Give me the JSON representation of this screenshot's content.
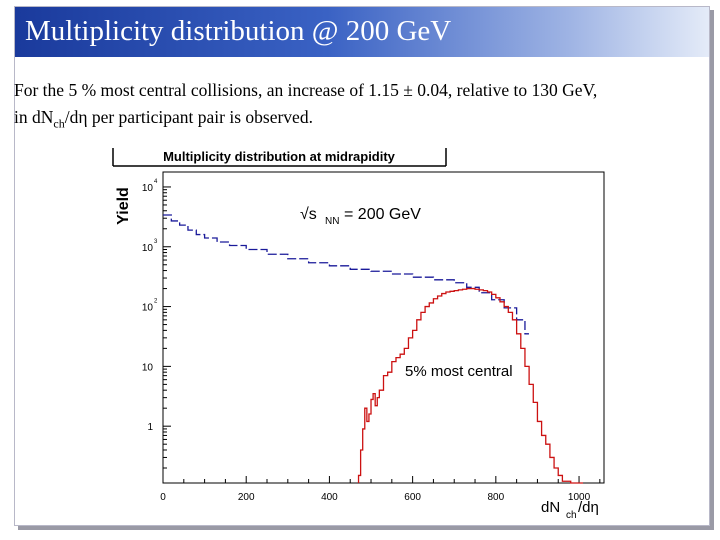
{
  "slide": {
    "title": "Multiplicity distribution @ 200 GeV",
    "body_line1_prefix": "For the 5 % most central collisions, an increase of 1.15 ± 0.04, relative to 130 GeV,",
    "body_line2_a": "in dN",
    "body_line2_sub": "ch",
    "body_line2_b": "/dη per participant pair is observed."
  },
  "chart_data": {
    "type": "line",
    "title": "Multiplicity distribution at midrapidity",
    "xlabel_main": "dN",
    "xlabel_sub": "ch",
    "xlabel_tail": "/dη",
    "ylabel": "Yield",
    "annotation_energy_prefix": "√s",
    "annotation_energy_sub": "NN",
    "annotation_energy_value": "= 200 GeV",
    "annotation_central": "5% most central",
    "x_ticks": [
      "0",
      "200",
      "400",
      "600",
      "800",
      "1000"
    ],
    "y_ticks": [
      {
        "value": 10000,
        "base": "10",
        "exp": "4"
      },
      {
        "value": 1000,
        "base": "10",
        "exp": "3"
      },
      {
        "value": 100,
        "base": "10",
        "exp": "2"
      },
      {
        "value": 10,
        "base": "10",
        "exp": ""
      },
      {
        "value": 1,
        "base": "1",
        "exp": ""
      }
    ],
    "xlim": [
      0,
      1060
    ],
    "ylim_log10": [
      -0.95,
      4.25
    ],
    "y_scale": "log",
    "colors": {
      "minbias": "#1a1a9a",
      "central": "#cc1111"
    },
    "series": [
      {
        "name": "",
        "color": "#1a1a9a",
        "x": [
          0,
          20,
          40,
          60,
          80,
          100,
          130,
          160,
          200,
          250,
          300,
          350,
          400,
          450,
          500,
          550,
          600,
          650,
          700,
          730,
          760,
          790,
          820,
          850,
          870
        ],
        "y": [
          3400,
          2700,
          2300,
          1900,
          1600,
          1400,
          1200,
          1050,
          900,
          750,
          630,
          540,
          480,
          420,
          390,
          350,
          310,
          280,
          250,
          210,
          170,
          130,
          95,
          60,
          35
        ]
      },
      {
        "name": "5% most central",
        "color": "#cc1111",
        "x": [
          470,
          475,
          480,
          485,
          490,
          495,
          500,
          505,
          510,
          515,
          520,
          530,
          540,
          550,
          560,
          570,
          580,
          590,
          600,
          610,
          620,
          630,
          640,
          650,
          660,
          670,
          680,
          690,
          700,
          710,
          720,
          730,
          740,
          750,
          760,
          770,
          780,
          790,
          800,
          810,
          820,
          830,
          840,
          850,
          860,
          870,
          880,
          890,
          900,
          910,
          920,
          930,
          940,
          950,
          960,
          980,
          1000
        ],
        "y": [
          0.15,
          0.4,
          0.9,
          2,
          1.2,
          1.6,
          2.8,
          3.5,
          2.2,
          3,
          4,
          7,
          8,
          12,
          14,
          16,
          20,
          30,
          40,
          60,
          80,
          100,
          115,
          135,
          150,
          165,
          175,
          180,
          185,
          190,
          195,
          200,
          200,
          195,
          190,
          185,
          175,
          160,
          140,
          120,
          100,
          80,
          60,
          35,
          20,
          10,
          5,
          2.5,
          1.2,
          0.7,
          0.5,
          0.3,
          0.2,
          0.15,
          0.12,
          0.1,
          0.1
        ]
      }
    ]
  }
}
